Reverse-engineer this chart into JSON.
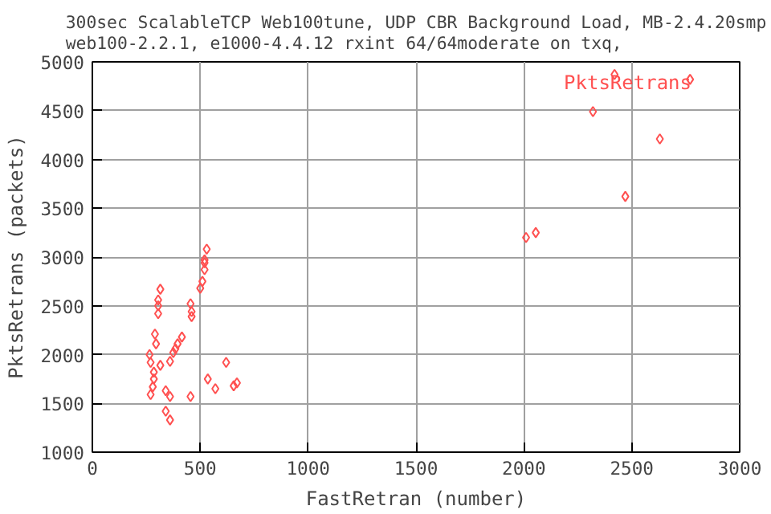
{
  "chart_data": {
    "type": "scatter",
    "title": "300sec ScalableTCP Web100tune, UDP CBR Background Load, MB-2.4.20smp web100-2.2.1, e1000-4.4.12 rxint 64/64moderate on txq,",
    "xlabel": "FastRetran (number)",
    "ylabel": "PktsRetrans (packets)",
    "xlim": [
      0,
      3000
    ],
    "ylim": [
      1000,
      5000
    ],
    "xticks": [
      0,
      500,
      1000,
      1500,
      2000,
      2500,
      3000
    ],
    "yticks": [
      1000,
      1500,
      2000,
      2500,
      3000,
      3500,
      4000,
      4500,
      5000
    ],
    "grid": true,
    "marker": "diamond",
    "series": [
      {
        "name": "PktsRetrans",
        "color": "#ff5050",
        "x": [
          530,
          520,
          520,
          520,
          315,
          510,
          500,
          305,
          305,
          455,
          460,
          460,
          305,
          290,
          295,
          415,
          395,
          385,
          375,
          265,
          270,
          360,
          315,
          285,
          285,
          280,
          270,
          340,
          360,
          455,
          620,
          535,
          570,
          670,
          655,
          340,
          360,
          2420,
          2770,
          2320,
          2630,
          2470,
          2010,
          2055
        ],
        "values": [
          3080,
          2970,
          2940,
          2870,
          2670,
          2750,
          2680,
          2560,
          2500,
          2520,
          2440,
          2390,
          2420,
          2210,
          2110,
          2180,
          2110,
          2060,
          2020,
          2000,
          1920,
          1930,
          1890,
          1820,
          1750,
          1670,
          1590,
          1630,
          1570,
          1570,
          1920,
          1750,
          1650,
          1710,
          1680,
          1420,
          1330,
          4870,
          4820,
          4490,
          4210,
          3620,
          3200,
          3250
        ]
      }
    ]
  }
}
